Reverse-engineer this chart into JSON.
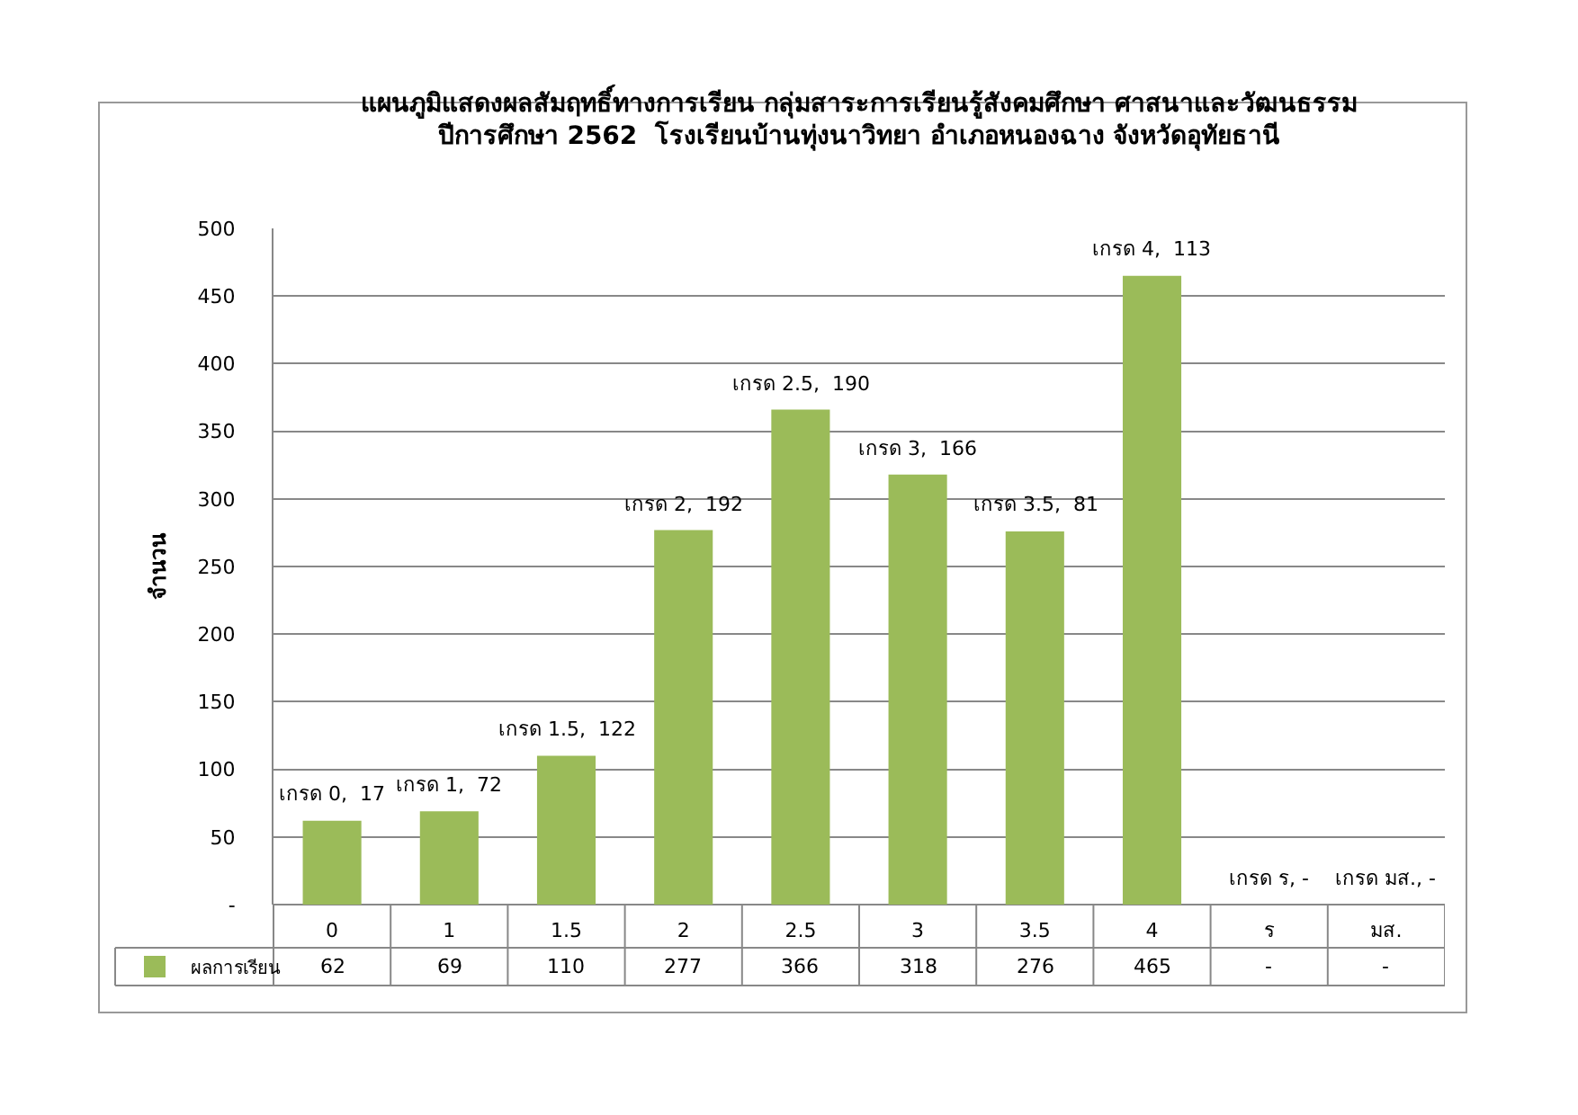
{
  "chart_data": {
    "type": "bar",
    "title": "แผนภูมิแสดงผลสัมฤทธิ์ทางการเรียน กลุ่มสาระการเรียนรู้สังคมศึกษา ศาสนาและวัฒนธรรม\nปีการศึกษา 2562  โรงเรียนบ้านทุ่งนาวิทยา อำเภอหนองฉาง จังหวัดอุทัยธานี",
    "ylabel": "จำนวน",
    "categories": [
      "0",
      "1",
      "1.5",
      "2",
      "2.5",
      "3",
      "3.5",
      "4",
      "ร",
      "มส."
    ],
    "series": [
      {
        "name": "ผลการเรียน",
        "color": "#9bbb59",
        "values": [
          62,
          69,
          110,
          277,
          366,
          318,
          276,
          465,
          0,
          0
        ],
        "value_labels": [
          "62",
          "69",
          "110",
          "277",
          "366",
          "318",
          "276",
          "465",
          "-",
          "-"
        ]
      }
    ],
    "annotations": [
      {
        "text": "เกรด 0,  17",
        "x": "0",
        "y": 62
      },
      {
        "text": "เกรด 1,  72",
        "x": "1",
        "y": 69
      },
      {
        "text": "เกรด 1.5,  122",
        "x": "1.5",
        "y": 110
      },
      {
        "text": "เกรด 2,  192",
        "x": "2",
        "y": 277
      },
      {
        "text": "เกรด 2.5,  190",
        "x": "2.5",
        "y": 366
      },
      {
        "text": "เกรด 3,  166",
        "x": "3",
        "y": 318
      },
      {
        "text": "เกรด 3.5,  81",
        "x": "3.5",
        "y": 276
      },
      {
        "text": "เกรด 4,  113",
        "x": "4",
        "y": 465
      },
      {
        "text": "เกรด ร, -",
        "x": "ร",
        "y": 0
      },
      {
        "text": "เกรด มส., -",
        "x": "มส.",
        "y": 0
      }
    ],
    "ylim": [
      0,
      500
    ],
    "yticks": [
      {
        "value": 0,
        "label": "-"
      },
      50,
      100,
      150,
      200,
      250,
      300,
      350,
      400,
      450,
      500
    ],
    "grid": "y",
    "legend": "bottom left"
  }
}
